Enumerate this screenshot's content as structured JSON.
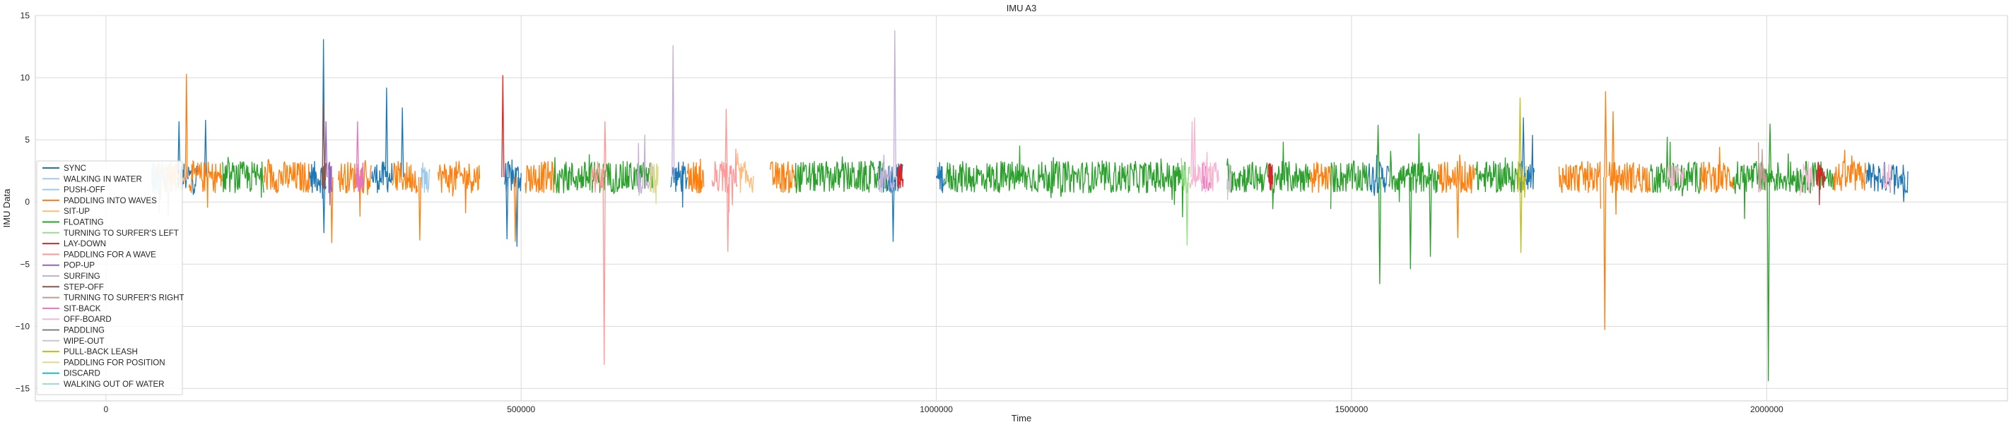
{
  "chart_data": {
    "type": "line",
    "title": "IMU A3",
    "xlabel": "Time",
    "ylabel": "IMU Data",
    "xlim": [
      -85000,
      2290000
    ],
    "ylim": [
      -16,
      15
    ],
    "xticks": [
      0,
      500000,
      1000000,
      1500000,
      2000000
    ],
    "xtick_labels": [
      "0",
      "500000",
      "1000000",
      "1500000",
      "2000000"
    ],
    "yticks": [
      -15,
      -10,
      -5,
      0,
      5,
      10,
      15
    ],
    "ytick_labels": [
      "−15",
      "−10",
      "−5",
      "0",
      "5",
      "10",
      "15"
    ],
    "grid": true,
    "legend_position": "lower-left",
    "baseline_center": 2,
    "series": [
      {
        "name": "SYNC",
        "color": "#1f77b4",
        "segments": [
          [
            85000,
            110000
          ],
          [
            245000,
            265000
          ],
          [
            320000,
            345000
          ],
          [
            480000,
            500000
          ],
          [
            680000,
            700000
          ],
          [
            930000,
            960000
          ],
          [
            1000000,
            1010000
          ],
          [
            1520000,
            1545000
          ],
          [
            1700000,
            1720000
          ],
          [
            2120000,
            2170000
          ]
        ],
        "extremes": [
          [
            88000,
            6.5
          ],
          [
            120000,
            6.6
          ],
          [
            262000,
            13.1
          ],
          [
            262500,
            -2.5
          ],
          [
            338000,
            9.2
          ],
          [
            357000,
            7.6
          ],
          [
            483000,
            -3
          ],
          [
            495000,
            -3.6
          ],
          [
            948000,
            -3.2
          ],
          [
            1707000,
            6.8
          ],
          [
            2165000,
            0
          ]
        ]
      },
      {
        "name": "WALKING IN WATER",
        "color": "#aec7e8",
        "segments": [
          [
            55000,
            85000
          ]
        ],
        "extremes": [
          [
            75000,
            -1.2
          ]
        ]
      },
      {
        "name": "PUSH-OFF",
        "color": "#9ecae9",
        "segments": [
          [
            380000,
            390000
          ]
        ],
        "extremes": []
      },
      {
        "name": "PADDLING INTO WAVES",
        "color": "#ff7f0e",
        "segments": [
          [
            100000,
            140000
          ],
          [
            190000,
            245000
          ],
          [
            280000,
            320000
          ],
          [
            345000,
            375000
          ],
          [
            400000,
            450000
          ],
          [
            505000,
            540000
          ],
          [
            700000,
            720000
          ],
          [
            800000,
            830000
          ],
          [
            1450000,
            1475000
          ],
          [
            1605000,
            1650000
          ],
          [
            1750000,
            1800000
          ],
          [
            1810000,
            1860000
          ],
          [
            1920000,
            1960000
          ],
          [
            2080000,
            2120000
          ]
        ],
        "extremes": [
          [
            97000,
            10.3
          ],
          [
            272000,
            -3.3
          ],
          [
            378000,
            -3.1
          ],
          [
            493000,
            -3.2
          ],
          [
            1806000,
            8.9
          ],
          [
            1805000,
            -10.3
          ],
          [
            1815000,
            7.3
          ],
          [
            1628000,
            -2.9
          ]
        ]
      },
      {
        "name": "SIT-UP",
        "color": "#ffbb78",
        "segments": [
          [
            60000,
            100000
          ],
          [
            760000,
            780000
          ]
        ],
        "extremes": []
      },
      {
        "name": "FLOATING",
        "color": "#2ca02c",
        "segments": [
          [
            140000,
            190000
          ],
          [
            540000,
            660000
          ],
          [
            830000,
            940000
          ],
          [
            1010000,
            1300000
          ],
          [
            1350000,
            1450000
          ],
          [
            1475000,
            1520000
          ],
          [
            1545000,
            1605000
          ],
          [
            1650000,
            1700000
          ],
          [
            1860000,
            1920000
          ],
          [
            1960000,
            2080000
          ]
        ],
        "extremes": [
          [
            1532000,
            6.2
          ],
          [
            1534000,
            -6.6
          ],
          [
            1571000,
            -5.4
          ],
          [
            2002000,
            -14.4
          ],
          [
            2004000,
            6.3
          ],
          [
            1595000,
            -4.4
          ]
        ]
      },
      {
        "name": "TURNING TO SURFER'S LEFT",
        "color": "#98df8a",
        "segments": [
          [
            1295000,
            1305000
          ]
        ],
        "extremes": [
          [
            1302000,
            -3.5
          ]
        ]
      },
      {
        "name": "LAY-DOWN",
        "color": "#d62728",
        "segments": [
          [
            953000,
            960000
          ],
          [
            1400000,
            1405000
          ],
          [
            2060000,
            2070000
          ]
        ],
        "extremes": [
          [
            478000,
            10.2
          ]
        ]
      },
      {
        "name": "PADDLING FOR A WAVE",
        "color": "#ff9896",
        "segments": [
          [
            585000,
            600000
          ],
          [
            730000,
            760000
          ]
        ],
        "extremes": [
          [
            600000,
            -13.1
          ],
          [
            601000,
            6.5
          ],
          [
            747000,
            7.5
          ],
          [
            749000,
            -4
          ]
        ]
      },
      {
        "name": "POP-UP",
        "color": "#9467bd",
        "segments": [
          [
            268000,
            272000
          ]
        ],
        "extremes": [
          [
            265000,
            6.5
          ]
        ]
      },
      {
        "name": "SURFING",
        "color": "#c5b0d5",
        "segments": [
          [
            640000,
            660000
          ],
          [
            930000,
            950000
          ]
        ],
        "extremes": [
          [
            683000,
            12.6
          ],
          [
            950000,
            13.8
          ]
        ]
      },
      {
        "name": "STEP-OFF",
        "color": "#8c564b",
        "segments": [
          [
            260000,
            265000
          ]
        ],
        "extremes": [
          [
            262000,
            8
          ]
        ]
      },
      {
        "name": "TURNING TO SURFER'S RIGHT",
        "color": "#c49c94",
        "segments": [
          [
            1990000,
            2000000
          ]
        ],
        "extremes": []
      },
      {
        "name": "SIT-BACK",
        "color": "#e377c2",
        "segments": [
          [
            300000,
            310000
          ],
          [
            1320000,
            1330000
          ]
        ],
        "extremes": [
          [
            303000,
            6.5
          ]
        ]
      },
      {
        "name": "OFF-BOARD",
        "color": "#f7b6d2",
        "segments": [
          [
            1305000,
            1340000
          ],
          [
            1880000,
            1900000
          ],
          [
            2040000,
            2055000
          ],
          [
            2140000,
            2150000
          ]
        ],
        "extremes": [
          [
            1311000,
            6.8
          ],
          [
            1308000,
            6.5
          ]
        ]
      },
      {
        "name": "PADDLING",
        "color": "#7f7f7f",
        "segments": [],
        "extremes": []
      },
      {
        "name": "WIPE-OUT",
        "color": "#c7c7c7",
        "segments": [
          [
            1350000,
            1355000
          ]
        ],
        "extremes": []
      },
      {
        "name": "PULL-BACK LEASH",
        "color": "#bcbd22",
        "segments": [
          [
            1700000,
            1710000
          ]
        ],
        "extremes": [
          [
            1703000,
            8.4
          ],
          [
            1704000,
            -4.1
          ]
        ]
      },
      {
        "name": "PADDLING FOR POSITION",
        "color": "#dbdb8d",
        "segments": [
          [
            655000,
            665000
          ]
        ],
        "extremes": []
      },
      {
        "name": "DISCARD",
        "color": "#17becf",
        "segments": [],
        "extremes": []
      },
      {
        "name": "WALKING OUT OF WATER",
        "color": "#9edae5",
        "segments": [
          [
            55000,
            70000
          ]
        ],
        "extremes": []
      }
    ]
  }
}
